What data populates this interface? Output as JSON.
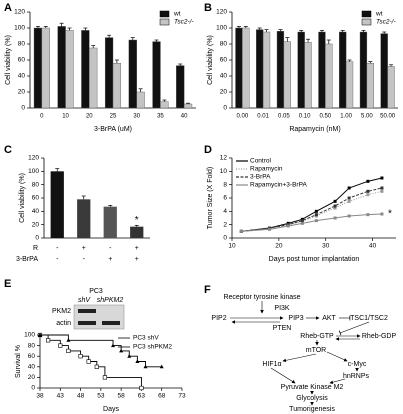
{
  "chart_data": [
    {
      "type": "bar",
      "panel": "A",
      "categories": [
        "0",
        "10",
        "20",
        "25",
        "30",
        "35",
        "40"
      ],
      "series": [
        {
          "name": "wt",
          "color": "#111111",
          "values": [
            100,
            102,
            97,
            88,
            85,
            83,
            53
          ],
          "errors": [
            2,
            4,
            3,
            3,
            3,
            2,
            2
          ]
        },
        {
          "name": "Tsc2-/-",
          "color": "#c4c4c4",
          "values": [
            100,
            97,
            75,
            56,
            20,
            8,
            5
          ],
          "errors": [
            2,
            3,
            3,
            4,
            4,
            2,
            1
          ]
        }
      ],
      "ylim": [
        0,
        120
      ],
      "yticks": [
        0,
        20,
        40,
        60,
        80,
        100,
        120
      ],
      "xlabel": "3-BrPA (uM)",
      "ylabel": "Cell viability (%)"
    },
    {
      "type": "bar",
      "panel": "B",
      "categories": [
        "0.00",
        "0.01",
        "0.05",
        "0.10",
        "0.50",
        "1.00",
        "5.00",
        "50.00"
      ],
      "series": [
        {
          "name": "wt",
          "color": "#111111",
          "values": [
            100,
            98,
            96,
            95,
            95,
            95,
            95,
            93
          ],
          "errors": [
            2,
            2,
            2,
            2,
            2,
            2,
            2,
            2
          ]
        },
        {
          "name": "Tsc2-/-",
          "color": "#c4c4c4",
          "values": [
            100,
            95,
            83,
            82,
            80,
            58,
            56,
            52
          ],
          "errors": [
            2,
            3,
            5,
            4,
            5,
            2,
            2,
            2
          ]
        }
      ],
      "ylim": [
        0,
        120
      ],
      "yticks": [
        0,
        20,
        40,
        60,
        80,
        100,
        120
      ],
      "xlabel": "Rapamycin (nM)",
      "ylabel": "Cell viability (%)"
    },
    {
      "type": "bar",
      "panel": "C",
      "values": [
        100,
        58,
        47,
        17
      ],
      "errors": [
        4,
        5,
        2,
        2
      ],
      "colors": [
        "#111111",
        "#3a3a3a",
        "#555555",
        "#333333"
      ],
      "treatments": [
        {
          "name": "R",
          "signs": [
            "-",
            "+",
            "-",
            "+"
          ]
        },
        {
          "name": "3-BrPA",
          "signs": [
            "-",
            "-",
            "+",
            "+"
          ]
        }
      ],
      "annotation": "*",
      "ylim": [
        0,
        120
      ],
      "yticks": [
        0,
        20,
        40,
        60,
        80,
        100,
        120
      ],
      "ylabel": "Cell viability (%)"
    },
    {
      "type": "line",
      "panel": "D",
      "x": [
        12,
        18,
        22,
        25,
        28,
        32,
        35,
        39,
        42
      ],
      "series": [
        {
          "name": "Control",
          "color": "#000000",
          "style": "solid",
          "values": [
            1,
            1.5,
            2.2,
            2.8,
            4,
            5.5,
            7.5,
            8.5,
            9
          ]
        },
        {
          "name": "Rapamycin",
          "color": "#9a9a9a",
          "style": "dotted",
          "values": [
            1,
            1.4,
            2,
            2.5,
            3.3,
            4.5,
            5.5,
            6.5,
            7
          ]
        },
        {
          "name": "3-BrPA",
          "color": "#333333",
          "style": "dashed",
          "values": [
            1,
            1.5,
            2,
            2.6,
            3.5,
            4.8,
            6,
            7,
            7.5
          ]
        },
        {
          "name": "Rapamycin+3-BrPA",
          "color": "#888888",
          "style": "solid",
          "values": [
            1,
            1.3,
            1.8,
            2.2,
            2.6,
            3,
            3.3,
            3.5,
            3.6
          ]
        }
      ],
      "annotation": "*",
      "xlim": [
        10,
        45
      ],
      "xticks": [
        10,
        20,
        30,
        40
      ],
      "ylim": [
        0,
        12
      ],
      "yticks": [
        0,
        2,
        4,
        6,
        8,
        10,
        12
      ],
      "xlabel": "Days post tumor implantation",
      "ylabel": "Tumor Size (X Fold)"
    },
    {
      "type": "step",
      "panel": "E",
      "series": [
        {
          "name": "PC3 shV",
          "color": "#000000",
          "marker": "square",
          "x": [
            38,
            40,
            43,
            45,
            48,
            50,
            52,
            54,
            63
          ],
          "values": [
            100,
            90,
            80,
            70,
            60,
            50,
            40,
            20,
            0
          ]
        },
        {
          "name": "PC3 shPKM2",
          "color": "#000000",
          "marker": "triangle",
          "x": [
            38,
            45,
            56,
            58,
            60,
            62,
            64,
            68
          ],
          "values": [
            100,
            90,
            80,
            70,
            60,
            50,
            40,
            40
          ]
        }
      ],
      "xlim": [
        38,
        73
      ],
      "xticks": [
        38,
        43,
        48,
        53,
        58,
        63,
        68,
        73
      ],
      "ylim": [
        0,
        100
      ],
      "yticks": [
        0,
        20,
        40,
        60,
        80,
        100
      ],
      "xlabel": "Days",
      "ylabel": "Survival %"
    }
  ],
  "blot": {
    "title": "PC3",
    "lanes": [
      "shV",
      "shPKM2"
    ],
    "bands": [
      "PKM2",
      "actin"
    ]
  },
  "diagram": {
    "panel": "F",
    "nodes": [
      "Receptor tyrosine kinase",
      "PI3K",
      "PIP2",
      "PTEN",
      "PIP3",
      "AKT",
      "TSC1/TSC2",
      "Rheb-GTP",
      "Rheb-GDP",
      "mTOR",
      "HIF1α",
      "c-Myc",
      "hnRNPs",
      "Pyruvate Kinase M2",
      "Glycolysis",
      "Tumorigenesis"
    ]
  }
}
